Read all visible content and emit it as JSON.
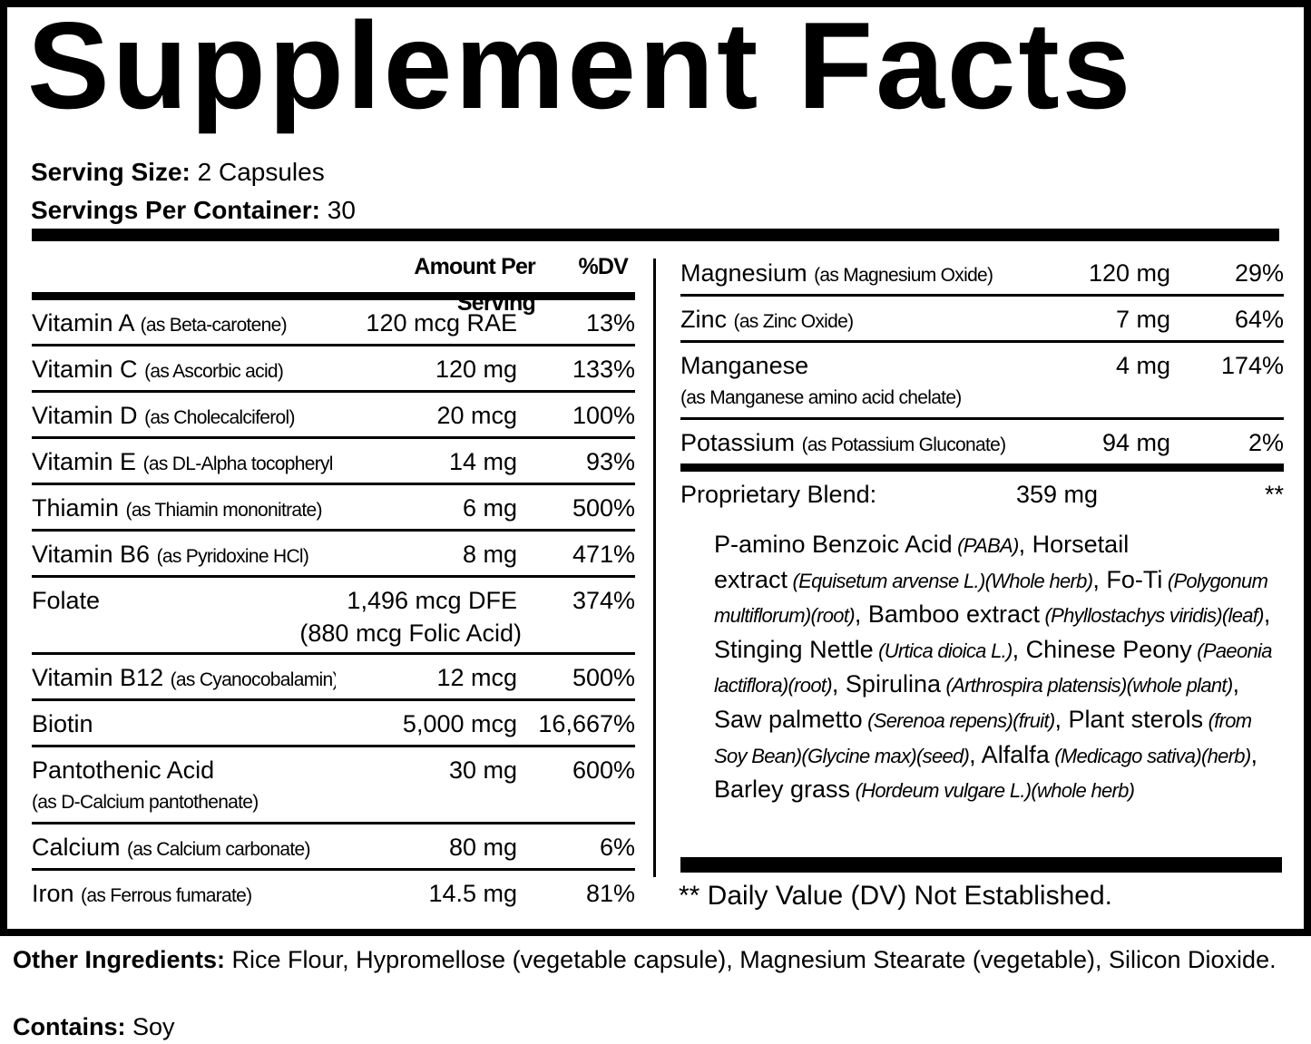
{
  "title": "Supplement Facts",
  "serving": [
    {
      "label": "Serving Size:",
      "value": "2 Capsules"
    },
    {
      "label": "Servings Per Container:",
      "value": "30"
    }
  ],
  "left_header": {
    "amount": "Amount Per Serving",
    "dv": "%DV"
  },
  "left_rows": [
    {
      "name": "Vitamin A",
      "source": "(as Beta-carotene)",
      "amount": "120 mcg RAE",
      "dv": "13%"
    },
    {
      "name": "Vitamin C",
      "source": "(as Ascorbic acid)",
      "amount": "120 mg",
      "dv": "133%"
    },
    {
      "name": "Vitamin D",
      "source": "(as Cholecalciferol)",
      "amount": "20 mcg",
      "dv": "100%"
    },
    {
      "name": "Vitamin E",
      "source": "(as DL-Alpha tocopheryl acetate)",
      "amount": "14 mg",
      "dv": "93%"
    },
    {
      "name": "Thiamin",
      "source": "(as Thiamin mononitrate)",
      "amount": "6 mg",
      "dv": "500%"
    },
    {
      "name": "Vitamin B6",
      "source": "(as Pyridoxine HCl)",
      "amount": "8 mg",
      "dv": "471%"
    },
    {
      "name": "Folate",
      "amount": "1,496 mcg DFE",
      "dv": "374%",
      "amount_detail": "(880 mcg Folic Acid)"
    },
    {
      "name": "Vitamin B12",
      "source": "(as Cyanocobalamin)",
      "amount": "12 mcg",
      "dv": "500%"
    },
    {
      "name": "Biotin",
      "amount": "5,000 mcg",
      "dv": "16,667%"
    },
    {
      "name": "Pantothenic Acid",
      "amount": "30 mg",
      "dv": "600%",
      "detail": "(as  D-Calcium pantothenate)"
    },
    {
      "name": "Calcium",
      "source": "(as Calcium carbonate)",
      "amount": "80 mg",
      "dv": "6%"
    },
    {
      "name": "Iron",
      "source": "(as Ferrous fumarate)",
      "amount": "14.5 mg",
      "dv": "81%"
    }
  ],
  "right_rows": [
    {
      "name": "Magnesium",
      "source": "(as Magnesium Oxide)",
      "amount": "120 mg",
      "dv": "29%"
    },
    {
      "name": "Zinc",
      "source": "(as Zinc Oxide)",
      "amount": "7 mg",
      "dv": "64%"
    },
    {
      "name": "Manganese",
      "amount": "4 mg",
      "dv": "174%",
      "detail": "(as Manganese amino acid chelate)"
    },
    {
      "name": "Potassium",
      "source": "(as Potassium Gluconate)",
      "amount": "94 mg",
      "dv": "2%"
    }
  ],
  "blend": {
    "name": "Proprietary Blend:",
    "amount": "359 mg",
    "dv": "**"
  },
  "blend_ingredients": [
    {
      "text": "P-amino Benzoic Acid",
      "italic": false
    },
    {
      "text": "(PABA)",
      "italic": true
    },
    {
      "text": ", Horsetail extract",
      "italic": false
    },
    {
      "text": "(Equisetum arvense L.)(Whole herb)",
      "italic": true
    },
    {
      "text": ", Fo-Ti",
      "italic": false
    },
    {
      "text": "(Polygonum multiflorum)(root)",
      "italic": true
    },
    {
      "text": ", Bamboo extract",
      "italic": false
    },
    {
      "text": "(Phyllostachys viridis)(leaf)",
      "italic": true
    },
    {
      "text": ", Stinging Nettle",
      "italic": false
    },
    {
      "text": "(Urtica dioica L.)",
      "italic": true
    },
    {
      "text": ", Chinese Peony",
      "italic": false
    },
    {
      "text": "(Paeonia lactiflora)(root)",
      "italic": true
    },
    {
      "text": ", Spirulina",
      "italic": false
    },
    {
      "text": "(Arthrospira platensis)(whole plant)",
      "italic": true
    },
    {
      "text": ", Saw palmetto",
      "italic": false
    },
    {
      "text": "(Serenoa repens)(fruit)",
      "italic": true
    },
    {
      "text": ", Plant sterols",
      "italic": false
    },
    {
      "text": "(from Soy Bean)(Glycine max)(seed)",
      "italic": true
    },
    {
      "text": ", Alfalfa",
      "italic": false
    },
    {
      "text": "(Medicago sativa)(herb)",
      "italic": true
    },
    {
      "text": ", Barley grass",
      "italic": false
    },
    {
      "text": "(Hordeum vulgare L.)(whole herb)",
      "italic": true
    }
  ],
  "footnote": "** Daily Value (DV) Not Established.",
  "other_ingredients": {
    "label": "Other Ingredients:",
    "text": "Rice Flour, Hypromellose (vegetable capsule), Magnesium Stearate (vegetable), Silicon Dioxide."
  },
  "contains": {
    "label": "Contains:",
    "text": "Soy"
  }
}
